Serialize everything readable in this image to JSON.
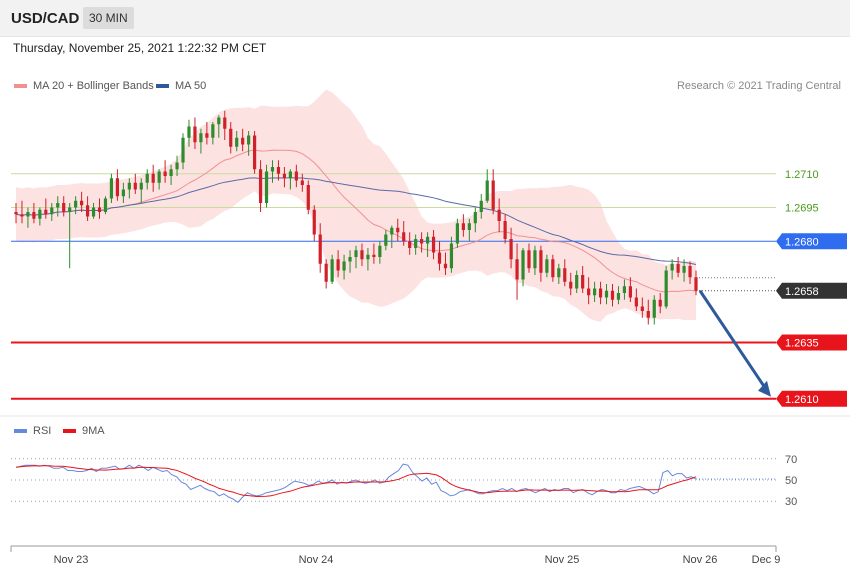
{
  "header": {
    "symbol": "USD/CAD",
    "timeframe": "30 MIN"
  },
  "datetime": "Thursday, November 25, 2021 1:22:32 PM CET",
  "credit": "Research © 2021 Trading Central",
  "legend": {
    "ma20_label": "MA 20 + Bollinger Bands",
    "ma50_label": "MA 50",
    "rsi_label": "RSI",
    "rsi_ma_label": "9MA"
  },
  "colors": {
    "up": "#2e8b2e",
    "down": "#d0202a",
    "band": "#fde2e2",
    "ma20": "#f29090",
    "ma50": "#5a6aa8",
    "resistance": "#c9dca0",
    "support": "#e8141c",
    "pivot": "#2f6cf0",
    "current": "#333333",
    "arrow": "#2e5a9c",
    "rsi": "#6688dd",
    "rsi_ma": "#e8141c"
  },
  "chart_data": {
    "type": "candlestick",
    "y_range": [
      1.2605,
      1.2745
    ],
    "x_labels": [
      "Nov 23",
      "Nov 24",
      "Nov 25",
      "Nov 26",
      "Dec 9"
    ],
    "levels": [
      {
        "value": 1.271,
        "label": "1.2710",
        "kind": "resistance"
      },
      {
        "value": 1.2695,
        "label": "1.2695",
        "kind": "resistance"
      },
      {
        "value": 1.268,
        "label": "1.2680",
        "kind": "pivot"
      },
      {
        "value": 1.2658,
        "label": "1.2658",
        "kind": "current"
      },
      {
        "value": 1.2635,
        "label": "1.2635",
        "kind": "support"
      },
      {
        "value": 1.261,
        "label": "1.2610",
        "kind": "support"
      }
    ],
    "forecast": {
      "from": 1.2658,
      "to": 1.261
    },
    "candles": [
      [
        1.2693,
        1.2697,
        1.2688,
        1.2692
      ],
      [
        1.2692,
        1.2698,
        1.2688,
        1.2691
      ],
      [
        1.2691,
        1.2695,
        1.2686,
        1.2693
      ],
      [
        1.2693,
        1.2697,
        1.2688,
        1.269
      ],
      [
        1.269,
        1.2695,
        1.2687,
        1.2694
      ],
      [
        1.2694,
        1.2699,
        1.269,
        1.2692
      ],
      [
        1.2692,
        1.2697,
        1.2689,
        1.2695
      ],
      [
        1.2695,
        1.27,
        1.2691,
        1.2697
      ],
      [
        1.2697,
        1.27,
        1.2691,
        1.2693
      ],
      [
        1.2693,
        1.2697,
        1.2668,
        1.2695
      ],
      [
        1.2695,
        1.27,
        1.2692,
        1.2698
      ],
      [
        1.2698,
        1.2702,
        1.2693,
        1.2696
      ],
      [
        1.2696,
        1.27,
        1.2689,
        1.2691
      ],
      [
        1.2691,
        1.2697,
        1.269,
        1.2695
      ],
      [
        1.2695,
        1.2699,
        1.269,
        1.2693
      ],
      [
        1.2693,
        1.27,
        1.2692,
        1.2699
      ],
      [
        1.2699,
        1.271,
        1.2697,
        1.2708
      ],
      [
        1.2708,
        1.2712,
        1.2698,
        1.27
      ],
      [
        1.27,
        1.2706,
        1.2697,
        1.2703
      ],
      [
        1.2703,
        1.2708,
        1.2699,
        1.2706
      ],
      [
        1.2706,
        1.271,
        1.2701,
        1.2703
      ],
      [
        1.2703,
        1.2708,
        1.2697,
        1.2706
      ],
      [
        1.2706,
        1.2712,
        1.2703,
        1.271
      ],
      [
        1.271,
        1.2714,
        1.2702,
        1.2706
      ],
      [
        1.2706,
        1.2712,
        1.2703,
        1.2711
      ],
      [
        1.2711,
        1.2716,
        1.2706,
        1.2709
      ],
      [
        1.2709,
        1.2714,
        1.2705,
        1.2712
      ],
      [
        1.2712,
        1.2718,
        1.2709,
        1.2715
      ],
      [
        1.2715,
        1.2728,
        1.2712,
        1.2726
      ],
      [
        1.2726,
        1.2734,
        1.2722,
        1.2731
      ],
      [
        1.2731,
        1.2735,
        1.2721,
        1.2724
      ],
      [
        1.2724,
        1.273,
        1.2719,
        1.2728
      ],
      [
        1.2728,
        1.2733,
        1.2723,
        1.2726
      ],
      [
        1.2726,
        1.2733,
        1.2723,
        1.2732
      ],
      [
        1.2732,
        1.2736,
        1.2726,
        1.2735
      ],
      [
        1.2735,
        1.2738,
        1.2725,
        1.273
      ],
      [
        1.273,
        1.2733,
        1.2719,
        1.2722
      ],
      [
        1.2722,
        1.2729,
        1.272,
        1.2726
      ],
      [
        1.2726,
        1.273,
        1.272,
        1.2723
      ],
      [
        1.2723,
        1.2729,
        1.2718,
        1.2727
      ],
      [
        1.2727,
        1.2729,
        1.271,
        1.2712
      ],
      [
        1.2712,
        1.2716,
        1.2693,
        1.2697
      ],
      [
        1.2697,
        1.2714,
        1.2695,
        1.2711
      ],
      [
        1.2711,
        1.2716,
        1.2706,
        1.2713
      ],
      [
        1.2713,
        1.2716,
        1.2707,
        1.271
      ],
      [
        1.271,
        1.2713,
        1.2704,
        1.2708
      ],
      [
        1.2708,
        1.2712,
        1.2703,
        1.2711
      ],
      [
        1.2711,
        1.2714,
        1.2704,
        1.2707
      ],
      [
        1.2707,
        1.271,
        1.2702,
        1.2705
      ],
      [
        1.2705,
        1.2707,
        1.2692,
        1.2694
      ],
      [
        1.2694,
        1.2696,
        1.268,
        1.2683
      ],
      [
        1.2683,
        1.2688,
        1.2666,
        1.267
      ],
      [
        1.267,
        1.2672,
        1.2659,
        1.2662
      ],
      [
        1.2662,
        1.2674,
        1.2661,
        1.2672
      ],
      [
        1.2672,
        1.2676,
        1.2664,
        1.2667
      ],
      [
        1.2667,
        1.2674,
        1.2663,
        1.2671
      ],
      [
        1.2671,
        1.2676,
        1.2666,
        1.2673
      ],
      [
        1.2673,
        1.2678,
        1.2668,
        1.2676
      ],
      [
        1.2676,
        1.2679,
        1.2669,
        1.2672
      ],
      [
        1.2672,
        1.2677,
        1.2667,
        1.2674
      ],
      [
        1.2674,
        1.2679,
        1.267,
        1.2673
      ],
      [
        1.2673,
        1.268,
        1.267,
        1.2678
      ],
      [
        1.2678,
        1.2685,
        1.2676,
        1.2683
      ],
      [
        1.2683,
        1.2687,
        1.2677,
        1.2686
      ],
      [
        1.2686,
        1.269,
        1.268,
        1.2684
      ],
      [
        1.2684,
        1.2689,
        1.2678,
        1.268
      ],
      [
        1.268,
        1.2684,
        1.2674,
        1.2677
      ],
      [
        1.2677,
        1.2683,
        1.2674,
        1.2681
      ],
      [
        1.2681,
        1.2684,
        1.2675,
        1.2679
      ],
      [
        1.2679,
        1.2684,
        1.2673,
        1.2682
      ],
      [
        1.2682,
        1.2685,
        1.2672,
        1.2675
      ],
      [
        1.2675,
        1.268,
        1.2667,
        1.267
      ],
      [
        1.267,
        1.2675,
        1.2665,
        1.2668
      ],
      [
        1.2668,
        1.2682,
        1.2666,
        1.2679
      ],
      [
        1.2679,
        1.269,
        1.2677,
        1.2688
      ],
      [
        1.2688,
        1.2692,
        1.2682,
        1.2685
      ],
      [
        1.2685,
        1.269,
        1.268,
        1.2688
      ],
      [
        1.2688,
        1.2695,
        1.2684,
        1.2693
      ],
      [
        1.2693,
        1.2701,
        1.269,
        1.2698
      ],
      [
        1.2698,
        1.2712,
        1.2697,
        1.2707
      ],
      [
        1.2707,
        1.2712,
        1.2692,
        1.2694
      ],
      [
        1.2694,
        1.2699,
        1.2684,
        1.2689
      ],
      [
        1.2689,
        1.2692,
        1.2679,
        1.2681
      ],
      [
        1.2681,
        1.2686,
        1.2668,
        1.2672
      ],
      [
        1.2672,
        1.2679,
        1.2654,
        1.2663
      ],
      [
        1.2663,
        1.2677,
        1.266,
        1.2676
      ],
      [
        1.2676,
        1.2679,
        1.2666,
        1.2668
      ],
      [
        1.2668,
        1.2678,
        1.2665,
        1.2676
      ],
      [
        1.2676,
        1.2678,
        1.2662,
        1.2666
      ],
      [
        1.2666,
        1.2674,
        1.2664,
        1.2672
      ],
      [
        1.2672,
        1.2674,
        1.2662,
        1.2664
      ],
      [
        1.2664,
        1.267,
        1.2661,
        1.2668
      ],
      [
        1.2668,
        1.2672,
        1.266,
        1.2662
      ],
      [
        1.2662,
        1.2666,
        1.2656,
        1.2659
      ],
      [
        1.2659,
        1.2667,
        1.2657,
        1.2665
      ],
      [
        1.2665,
        1.2669,
        1.2657,
        1.2659
      ],
      [
        1.2659,
        1.2664,
        1.2652,
        1.2656
      ],
      [
        1.2656,
        1.2662,
        1.2653,
        1.2659
      ],
      [
        1.2659,
        1.2662,
        1.2652,
        1.2655
      ],
      [
        1.2655,
        1.2661,
        1.2652,
        1.2658
      ],
      [
        1.2658,
        1.2661,
        1.2651,
        1.2654
      ],
      [
        1.2654,
        1.266,
        1.2652,
        1.2657
      ],
      [
        1.2657,
        1.2663,
        1.2654,
        1.266
      ],
      [
        1.266,
        1.2664,
        1.2653,
        1.2655
      ],
      [
        1.2655,
        1.2659,
        1.2649,
        1.2651
      ],
      [
        1.2651,
        1.2655,
        1.2646,
        1.2649
      ],
      [
        1.2649,
        1.2654,
        1.2643,
        1.2646
      ],
      [
        1.2646,
        1.2656,
        1.2643,
        1.2654
      ],
      [
        1.2654,
        1.2657,
        1.2648,
        1.2651
      ],
      [
        1.2651,
        1.2669,
        1.265,
        1.2667
      ],
      [
        1.2667,
        1.2672,
        1.2663,
        1.267
      ],
      [
        1.267,
        1.2673,
        1.2664,
        1.2666
      ],
      [
        1.2666,
        1.2672,
        1.2662,
        1.2669
      ],
      [
        1.2669,
        1.2671,
        1.2661,
        1.2664
      ],
      [
        1.2664,
        1.2667,
        1.2656,
        1.2658
      ]
    ],
    "rsi": [
      62,
      63,
      64,
      64,
      64,
      63,
      64,
      63,
      61,
      61,
      62,
      59,
      59,
      58,
      58,
      59,
      61,
      58,
      61,
      61,
      62,
      63,
      60,
      61,
      64,
      61,
      64,
      62,
      59,
      62,
      60,
      58,
      59,
      55,
      53,
      48,
      46,
      41,
      43,
      45,
      42,
      40,
      39,
      35,
      37,
      34,
      32,
      29,
      34,
      38,
      36,
      35,
      36,
      38,
      39,
      40,
      41,
      43,
      46,
      49,
      48,
      47,
      45,
      46,
      49,
      47,
      48,
      50,
      46,
      48,
      47,
      49,
      50,
      48,
      47,
      48,
      50,
      47,
      48,
      53,
      56,
      59,
      65,
      64,
      57,
      53,
      49,
      52,
      46,
      48,
      40,
      38,
      35,
      36,
      39,
      40,
      41,
      39,
      37,
      37,
      39,
      40,
      40,
      42,
      40,
      42,
      39,
      41,
      42,
      40,
      38,
      40,
      42,
      39,
      41,
      40,
      42,
      42,
      38,
      40,
      41,
      38,
      36,
      39,
      41,
      40,
      38,
      38,
      41,
      40,
      42,
      43,
      44,
      42,
      40,
      37,
      39,
      57,
      59,
      54,
      56,
      56,
      52,
      53,
      51
    ]
  }
}
